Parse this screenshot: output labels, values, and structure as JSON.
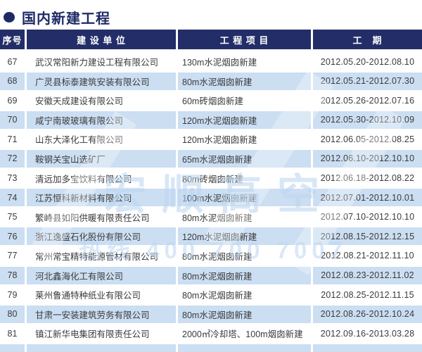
{
  "page": {
    "title": "国内新建工程"
  },
  "table": {
    "columns": [
      {
        "key": "index",
        "label": "序号"
      },
      {
        "key": "company",
        "label": "建 设 单 位"
      },
      {
        "key": "project",
        "label": "工 程 项 目"
      },
      {
        "key": "period",
        "label": "工　期"
      }
    ],
    "rows": [
      {
        "index": "67",
        "company": "武汉常阳新力建设工程有限公司",
        "project": "130m水泥烟囱新建",
        "period": "2012.05.20-2012.08.10"
      },
      {
        "index": "68",
        "company": "广灵县标泰建筑安装有限公司",
        "project": "80m水泥烟囱新建",
        "period": "2012.05.21-2012.07.30"
      },
      {
        "index": "69",
        "company": "安徽天成建设有限公司",
        "project": "60m砖烟囱新建",
        "period": "2012.05.26-2012.07.16"
      },
      {
        "index": "70",
        "company": "咸宁南玻玻璃有限公司",
        "project": "120m水泥烟囱新建",
        "period": "2012.05.30-2012.10.09"
      },
      {
        "index": "71",
        "company": "山东大泽化工有限公司",
        "project": "120m水泥烟囱新建",
        "period": "2012.06.05-2012.08.25"
      },
      {
        "index": "72",
        "company": "鞍钢关宝山选矿厂",
        "project": "65m水泥烟囱新建",
        "period": "2012.06.10-2012.10.10"
      },
      {
        "index": "73",
        "company": "清远加多宝饮料有限公司",
        "project": "80m砖烟囱新建",
        "period": "2012.06.18-2012.08.22"
      },
      {
        "index": "74",
        "company": "江苏恒科新材料有限公司",
        "project": "100m水泥烟囱新建",
        "period": "2012.07.01-2012.10.01"
      },
      {
        "index": "75",
        "company": "繁峙县如阳供暖有限责任公司",
        "project": "80m水泥烟囱新建",
        "period": "2012.07.10-2012.10.10"
      },
      {
        "index": "76",
        "company": "浙江逸盛石化股份有限公司",
        "project": "120m水泥烟囱新建",
        "period": "2012.08.15-2012.12.15"
      },
      {
        "index": "77",
        "company": "常州常宝精特能源管材有限公司",
        "project": "80m水泥烟囱新建",
        "period": "2012.08.21-2012.11.10"
      },
      {
        "index": "78",
        "company": "河北鑫海化工有限公司",
        "project": "80m水泥烟囱新建",
        "period": "2012.08.23-2012.11.02"
      },
      {
        "index": "79",
        "company": "莱州鲁通特种纸业有限公司",
        "project": "80m水泥烟囱新建",
        "period": "2012.08.25-2012.11.15"
      },
      {
        "index": "80",
        "company": "甘肃一安装建筑劳务有限公司",
        "project": "80m水泥烟囱新建",
        "period": "2012.08.26-2012.10.24"
      },
      {
        "index": "81",
        "company": "镇江新华电集团有限责任公司",
        "project": "2000㎡冷却塔、100m烟囱新建",
        "period": "2012.09.16-2013.03.28"
      }
    ]
  },
  "watermark": {
    "logo_text": "宏顺高空",
    "hotline_text": "热线 400 700 7007"
  },
  "colors": {
    "header_bg": "#232e68",
    "title_color": "#1e2a66",
    "row_alt_bg": "#cbdef2",
    "body_text": "#3b3b3b",
    "watermark_color": "#bbd6f0"
  }
}
